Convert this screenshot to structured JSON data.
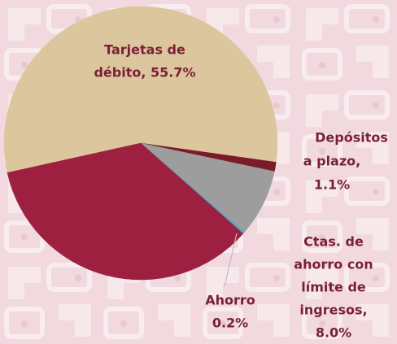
{
  "chart_data": {
    "type": "pie",
    "values": [
      55.7,
      1.1,
      8.0,
      0.2,
      35.0
    ],
    "value_labels": [
      [
        "Tarjetas de",
        "débito, 55.7%"
      ],
      [
        "Depósitos",
        "a  plazo,",
        "1.1%"
      ],
      [
        "Ctas. de",
        "ahorro con",
        "límite de",
        "ingresos,",
        "8.0%"
      ],
      [
        "Ahorro",
        "0.2%"
      ],
      null
    ],
    "colors": [
      "#dcc69e",
      "#7b1a2a",
      "#9d9d9d",
      "#4aa7c9",
      "#9e2040"
    ],
    "start_angle": 167.5
  }
}
